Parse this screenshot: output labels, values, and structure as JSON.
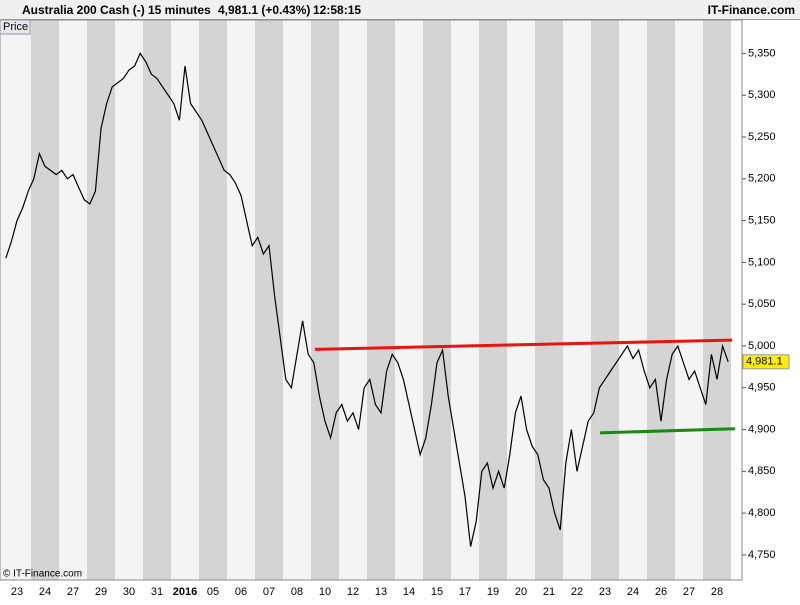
{
  "header": {
    "title": "Australia 200 Cash (-)",
    "timeframe": "15 minutes",
    "quote": "4,981.1 (+0.43%)",
    "time": "12:58:15",
    "brand": "IT-Finance.com"
  },
  "chart_data": {
    "type": "line",
    "panel_label": "Price",
    "copyright": "© IT-Finance.com",
    "categories": [
      "23",
      "24",
      "27",
      "29",
      "30",
      "31",
      "2016",
      "05",
      "06",
      "07",
      "08",
      "10",
      "12",
      "13",
      "14",
      "15",
      "17",
      "19",
      "20",
      "21",
      "22",
      "23",
      "24",
      "26",
      "27",
      "28"
    ],
    "series": [
      {
        "name": "Australia 200 Cash (-)",
        "color": "#000000",
        "values": [
          [
            5105,
            5125,
            5150,
            5165,
            5185
          ],
          [
            5200,
            5230,
            5215,
            5210,
            5205
          ],
          [
            5210,
            5200,
            5205,
            5190,
            5175
          ],
          [
            5170,
            5185,
            5260,
            5290,
            5310
          ],
          [
            5315,
            5320,
            5330,
            5335,
            5350
          ],
          [
            5340,
            5325,
            5320,
            5310,
            5300
          ],
          [
            5290,
            5270,
            5335,
            5290,
            5280
          ],
          [
            5270,
            5255,
            5240,
            5225,
            5210
          ],
          [
            5205,
            5195,
            5180,
            5150,
            5120
          ],
          [
            5130,
            5110,
            5120,
            5060,
            5010
          ],
          [
            4960,
            4950,
            4990,
            5030,
            4990
          ],
          [
            4980,
            4940,
            4910,
            4890,
            4920
          ],
          [
            4930,
            4910,
            4920,
            4900,
            4950
          ],
          [
            4960,
            4930,
            4920,
            4970,
            4990
          ],
          [
            4980,
            4960,
            4930,
            4900,
            4870
          ],
          [
            4890,
            4930,
            4980,
            4995,
            4940
          ],
          [
            4900,
            4860,
            4820,
            4760,
            4790
          ],
          [
            4850,
            4860,
            4830,
            4850,
            4830
          ],
          [
            4870,
            4920,
            4940,
            4900,
            4880
          ],
          [
            4870,
            4840,
            4830,
            4800,
            4780
          ],
          [
            4860,
            4900,
            4850,
            4880,
            4910
          ],
          [
            4920,
            4950,
            4960,
            4970,
            4980
          ],
          [
            4990,
            5000,
            4985,
            4995,
            4970
          ],
          [
            4950,
            4960,
            4910,
            4960,
            4990
          ],
          [
            5000,
            4980,
            4960,
            4970,
            4950
          ],
          [
            4930,
            4990,
            4960,
            5000,
            4981.1
          ]
        ]
      }
    ],
    "last_value": {
      "value": 4981.1,
      "label": "4,981.1"
    },
    "trendlines": [
      {
        "color": "#e8140f",
        "values": [
          4996,
          5007
        ]
      },
      {
        "color": "#1a8a14",
        "values": [
          4896,
          4901
        ]
      }
    ],
    "ylim": [
      4720,
      5390
    ],
    "yticks": [
      {
        "value": 4750,
        "label": "4,750"
      },
      {
        "value": 4800,
        "label": "4,800"
      },
      {
        "value": 4850,
        "label": "4,850"
      },
      {
        "value": 4900,
        "label": "4,900"
      },
      {
        "value": 4950,
        "label": "4,950"
      },
      {
        "value": 5000,
        "label": "5,000"
      },
      {
        "value": 5050,
        "label": "5,050"
      },
      {
        "value": 5100,
        "label": "5,100"
      },
      {
        "value": 5150,
        "label": "5,150"
      },
      {
        "value": 5200,
        "label": "5,200"
      },
      {
        "value": 5250,
        "label": "5,250"
      },
      {
        "value": 5300,
        "label": "5,300"
      },
      {
        "value": 5350,
        "label": "5,350"
      }
    ]
  }
}
